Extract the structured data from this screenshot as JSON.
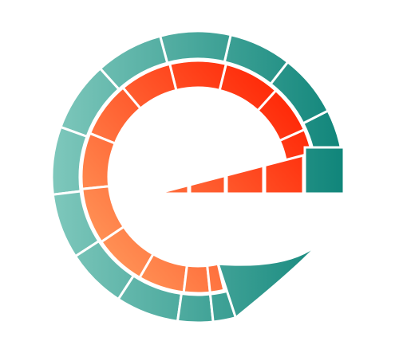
{
  "logo": {
    "name": "e-shaped-gauge-logo",
    "colors": {
      "teal_light": "#7dc7bb",
      "teal_dark": "#10857a",
      "orange_light": "#ff9a5c",
      "red_dark": "#ff1e00",
      "background": "#ffffff"
    }
  }
}
